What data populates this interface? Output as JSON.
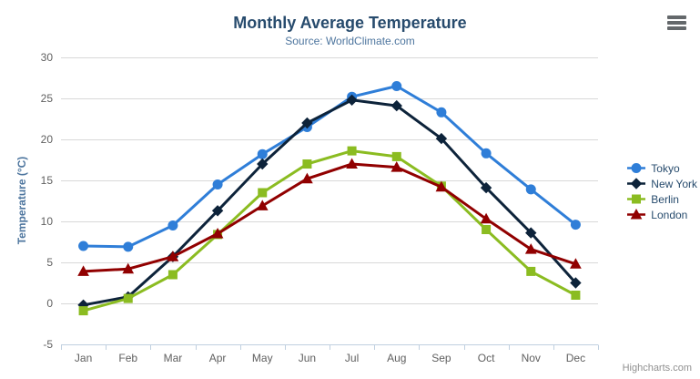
{
  "header": {
    "title": "Monthly Average Temperature",
    "subtitle": "Source: WorldClimate.com"
  },
  "toolbar": {
    "context_menu_icon": "hamburger-menu-icon"
  },
  "credits": {
    "label": "Highcharts.com"
  },
  "colors": {
    "title": "#274b6d",
    "subtitle": "#4d759e",
    "axis_title": "#4d759e",
    "tick_label": "#606060",
    "legend_text": "#274b6d",
    "grid": "#d8d8d8",
    "axis_line": "#c0d0e0",
    "credits": "#909090",
    "burger_icon": "#64686b",
    "background": "#ffffff"
  },
  "chart_data": {
    "type": "line",
    "title": "Monthly Average Temperature",
    "subtitle": "Source: WorldClimate.com",
    "categories": [
      "Jan",
      "Feb",
      "Mar",
      "Apr",
      "May",
      "Jun",
      "Jul",
      "Aug",
      "Sep",
      "Oct",
      "Nov",
      "Dec"
    ],
    "xlabel": "",
    "ylabel": "Temperature (°C)",
    "ylim": [
      -5,
      30
    ],
    "ytick_step": 5,
    "grid": true,
    "legend_position": "right",
    "series": [
      {
        "name": "Tokyo",
        "color": "#2f7ed8",
        "marker": "circle",
        "values": [
          7.0,
          6.9,
          9.5,
          14.5,
          18.2,
          21.5,
          25.2,
          26.5,
          23.3,
          18.3,
          13.9,
          9.6
        ]
      },
      {
        "name": "New York",
        "color": "#0d233a",
        "marker": "diamond",
        "values": [
          -0.2,
          0.8,
          5.7,
          11.3,
          17.0,
          22.0,
          24.8,
          24.1,
          20.1,
          14.1,
          8.6,
          2.5
        ]
      },
      {
        "name": "Berlin",
        "color": "#8bbc21",
        "marker": "square",
        "values": [
          -0.9,
          0.6,
          3.5,
          8.4,
          13.5,
          17.0,
          18.6,
          17.9,
          14.3,
          9.0,
          3.9,
          1.0
        ]
      },
      {
        "name": "London",
        "color": "#910000",
        "marker": "triangle",
        "values": [
          3.9,
          4.2,
          5.7,
          8.5,
          11.9,
          15.2,
          17.0,
          16.6,
          14.2,
          10.3,
          6.6,
          4.8
        ]
      }
    ]
  }
}
